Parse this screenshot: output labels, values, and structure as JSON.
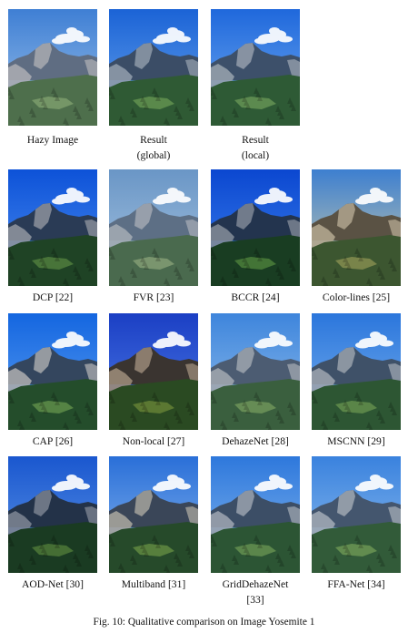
{
  "figure": {
    "caption": "Fig. 10: Qualitative comparison on Image Yosemite 1",
    "panels": [
      {
        "label": "Hazy Image",
        "sky_top": "#3f7fd4",
        "sky_bot": "#9fc4ea",
        "mtn": "#5f6d82",
        "cliff": "#a8aab0",
        "forest": "#4e6f4c",
        "meadow": "#7a9a6a"
      },
      {
        "label": "Result (global)",
        "sky_top": "#1b63d6",
        "sky_bot": "#6aa6ec",
        "mtn": "#3b4d66",
        "cliff": "#8e9aa8",
        "forest": "#2f5a34",
        "meadow": "#5f8e4e"
      },
      {
        "label": "Result (local)",
        "sky_top": "#1f68dc",
        "sky_bot": "#75aef0",
        "mtn": "#3d506a",
        "cliff": "#949eab",
        "forest": "#2e5a35",
        "meadow": "#628f52"
      },
      {
        "label": "DCP [22]",
        "sky_top": "#0d52d8",
        "sky_bot": "#4d8ff0",
        "mtn": "#2a3b55",
        "cliff": "#8c929c",
        "forest": "#1f4325",
        "meadow": "#4d7a3c"
      },
      {
        "label": "FVR [23]",
        "sky_top": "#6a96c6",
        "sky_bot": "#a9c6e2",
        "mtn": "#5d6f85",
        "cliff": "#a1a8b1",
        "forest": "#4a6a4e",
        "meadow": "#7f9a72"
      },
      {
        "label": "BCCR [24]",
        "sky_top": "#0b47d0",
        "sky_bot": "#3f84ee",
        "mtn": "#23344e",
        "cliff": "#7f8896",
        "forest": "#193d22",
        "meadow": "#487a38"
      },
      {
        "label": "Color-lines [25]",
        "sky_top": "#3d7fd0",
        "sky_bot": "#d8d2a8",
        "mtn": "#5a5244",
        "cliff": "#b0a58e",
        "forest": "#3c5630",
        "meadow": "#7f8a4e"
      },
      {
        "label": "CAP [26]",
        "sky_top": "#1466e0",
        "sky_bot": "#5da0f2",
        "mtn": "#34465e",
        "cliff": "#a7a9ac",
        "forest": "#244d2b",
        "meadow": "#5b8a47"
      },
      {
        "label": "Non-local [27]",
        "sky_top": "#1b3fc4",
        "sky_bot": "#4f7de8",
        "mtn": "#3a3430",
        "cliff": "#9a8a78",
        "forest": "#2a4a22",
        "meadow": "#617d34"
      },
      {
        "label": "DehazeNet [28]",
        "sky_top": "#3e85dc",
        "sky_bot": "#94c0ec",
        "mtn": "#4c5c72",
        "cliff": "#9ea5ae",
        "forest": "#3a5f3e",
        "meadow": "#6c9158"
      },
      {
        "label": "MSCNN [29]",
        "sky_top": "#2b76dc",
        "sky_bot": "#7cb3ee",
        "mtn": "#3f5168",
        "cliff": "#99a1ac",
        "forest": "#2d5633",
        "meadow": "#5f8b4a"
      },
      {
        "label": "AOD-Net [30]",
        "sky_top": "#1a57cf",
        "sky_bot": "#5f97e6",
        "mtn": "#233248",
        "cliff": "#7a8290",
        "forest": "#1a3b22",
        "meadow": "#4a7436"
      },
      {
        "label": "Multiband [31]",
        "sky_top": "#2a6fd8",
        "sky_bot": "#8ab8ee",
        "mtn": "#3a4658",
        "cliff": "#a5a39c",
        "forest": "#264a2a",
        "meadow": "#5d853f"
      },
      {
        "label": "GridDehazeNet [33]",
        "sky_top": "#2e78dc",
        "sky_bot": "#86b8ee",
        "mtn": "#3c4e66",
        "cliff": "#99a2ae",
        "forest": "#2c5534",
        "meadow": "#618c4e"
      },
      {
        "label": "FFA-Net [34]",
        "sky_top": "#3a82de",
        "sky_bot": "#92c0ee",
        "mtn": "#44566e",
        "cliff": "#9fa7b2",
        "forest": "#325b39",
        "meadow": "#679152"
      }
    ]
  }
}
